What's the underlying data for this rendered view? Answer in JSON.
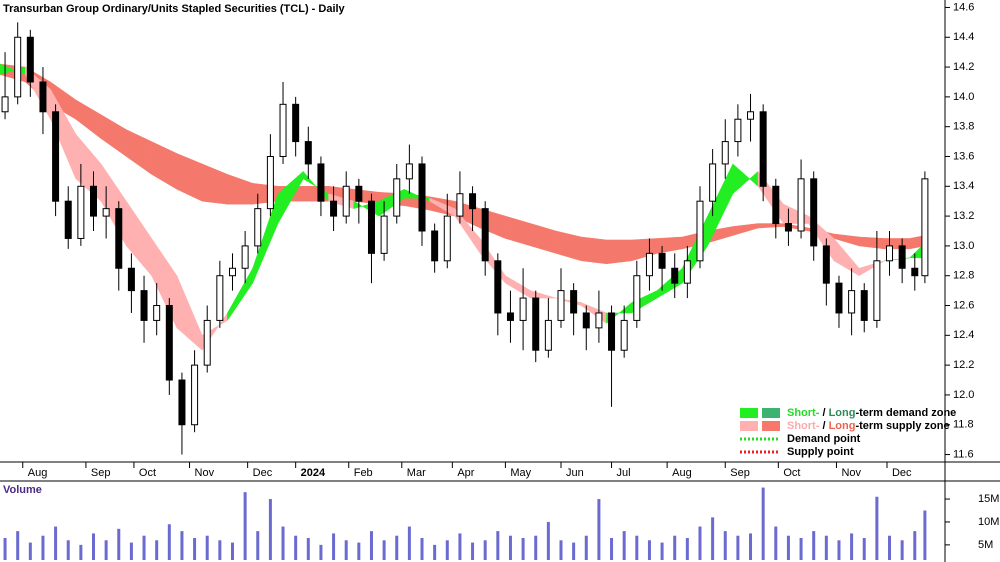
{
  "chart_data": [
    {
      "type": "candlestick",
      "title": "Transurban Group Ordinary/Units Stapled Securities (TCL) - Daily",
      "x": [
        2,
        7,
        12,
        17,
        22,
        27,
        32,
        37,
        42,
        47,
        52,
        57,
        62,
        67,
        72,
        77,
        82,
        87,
        92,
        97,
        102,
        107,
        112,
        117,
        122,
        127,
        132,
        137,
        142,
        147,
        152,
        157,
        162,
        167,
        172,
        177,
        182,
        187,
        192,
        197,
        202,
        207,
        212,
        217,
        222,
        227,
        232,
        237,
        242,
        247,
        252,
        257,
        262,
        267,
        272,
        277,
        282,
        287,
        292,
        297,
        302,
        307,
        312,
        317,
        322,
        327,
        332,
        337,
        342,
        347,
        352,
        357,
        362,
        366
      ],
      "open": [
        13.9,
        14.0,
        14.4,
        14.1,
        13.9,
        13.3,
        13.05,
        13.4,
        13.2,
        13.25,
        12.85,
        12.7,
        12.5,
        12.6,
        12.1,
        11.8,
        12.2,
        12.5,
        12.8,
        12.85,
        13.0,
        13.25,
        13.6,
        13.95,
        13.7,
        13.55,
        13.3,
        13.2,
        13.4,
        13.3,
        12.95,
        13.2,
        13.45,
        13.55,
        13.1,
        12.9,
        13.2,
        13.35,
        13.25,
        12.9,
        12.55,
        12.5,
        12.65,
        12.3,
        12.5,
        12.7,
        12.55,
        12.45,
        12.55,
        12.3,
        12.5,
        12.8,
        12.95,
        12.85,
        12.75,
        12.9,
        13.3,
        13.55,
        13.7,
        13.85,
        13.9,
        13.4,
        13.15,
        13.1,
        13.45,
        13.0,
        12.75,
        12.55,
        12.7,
        12.5,
        12.9,
        13.0,
        12.85,
        12.8
      ],
      "high": [
        14.3,
        14.5,
        14.45,
        14.2,
        13.95,
        13.4,
        13.55,
        13.5,
        13.4,
        13.3,
        12.95,
        12.8,
        12.75,
        12.65,
        12.15,
        12.3,
        12.6,
        12.9,
        12.95,
        13.1,
        13.35,
        13.75,
        14.1,
        14.0,
        13.8,
        13.6,
        13.4,
        13.5,
        13.45,
        13.35,
        13.3,
        13.55,
        13.68,
        13.6,
        13.15,
        13.35,
        13.5,
        13.4,
        13.3,
        12.95,
        12.7,
        12.85,
        12.7,
        12.65,
        12.85,
        12.75,
        12.6,
        12.7,
        12.6,
        12.6,
        12.9,
        13.05,
        13.0,
        12.95,
        13.0,
        13.4,
        13.65,
        13.85,
        13.95,
        14.02,
        13.95,
        13.45,
        13.25,
        13.58,
        13.5,
        13.05,
        12.8,
        12.85,
        12.75,
        13.1,
        13.1,
        13.05,
        12.95,
        13.5
      ],
      "low": [
        13.85,
        13.95,
        14.0,
        13.75,
        13.2,
        12.98,
        13.0,
        13.1,
        13.05,
        12.7,
        12.55,
        12.35,
        12.4,
        12.0,
        11.6,
        11.75,
        12.15,
        12.45,
        12.7,
        12.75,
        12.95,
        13.2,
        13.55,
        13.6,
        13.45,
        13.2,
        13.1,
        13.15,
        13.15,
        12.75,
        12.9,
        13.15,
        13.35,
        13.0,
        12.82,
        12.85,
        13.15,
        13.1,
        12.8,
        12.4,
        12.35,
        12.3,
        12.22,
        12.25,
        12.45,
        12.4,
        12.3,
        12.35,
        11.92,
        12.25,
        12.45,
        12.7,
        12.7,
        12.65,
        12.65,
        12.85,
        13.2,
        13.45,
        13.6,
        13.7,
        13.3,
        13.05,
        13.0,
        13.05,
        12.9,
        12.6,
        12.45,
        12.4,
        12.42,
        12.45,
        12.8,
        12.75,
        12.7,
        12.75
      ],
      "close": [
        14.0,
        14.4,
        14.1,
        13.9,
        13.3,
        13.05,
        13.4,
        13.2,
        13.25,
        12.85,
        12.7,
        12.5,
        12.6,
        12.1,
        11.8,
        12.2,
        12.5,
        12.8,
        12.85,
        13.0,
        13.25,
        13.6,
        13.95,
        13.7,
        13.55,
        13.3,
        13.2,
        13.4,
        13.3,
        12.95,
        13.2,
        13.45,
        13.55,
        13.1,
        12.9,
        13.2,
        13.35,
        13.25,
        12.9,
        12.55,
        12.5,
        12.65,
        12.3,
        12.5,
        12.7,
        12.55,
        12.45,
        12.55,
        12.3,
        12.5,
        12.8,
        12.95,
        12.85,
        12.75,
        12.9,
        13.3,
        13.55,
        13.7,
        13.85,
        13.9,
        13.4,
        13.15,
        13.1,
        13.45,
        13.0,
        12.75,
        12.55,
        12.7,
        12.5,
        12.9,
        13.0,
        12.85,
        12.8,
        13.45
      ],
      "up_color": "#ffffff",
      "down_color": "#000000",
      "xlim": [
        0,
        370
      ],
      "ylim": [
        11.55,
        14.65
      ],
      "yticks": [
        14.6,
        14.4,
        14.2,
        {
          "value": 14,
          "label": "14.0"
        },
        13.8,
        13.6,
        13.4,
        13.2,
        {
          "value": 13,
          "label": "13.0"
        },
        12.8,
        12.6,
        12.4,
        12.2,
        {
          "value": 12,
          "label": "12.0"
        },
        11.8,
        11.6
      ],
      "xticks": [
        {
          "value": 9,
          "label": "Aug"
        },
        {
          "value": 34,
          "label": "Sep"
        },
        {
          "value": 53,
          "label": "Oct"
        },
        {
          "value": 75,
          "label": "Nov"
        },
        {
          "value": 98,
          "label": "Dec"
        },
        {
          "value": 117,
          "label": "2024"
        },
        {
          "value": 138,
          "label": "Feb"
        },
        {
          "value": 159,
          "label": "Mar"
        },
        {
          "value": 179,
          "label": "Apr"
        },
        {
          "value": 200,
          "label": "May"
        },
        {
          "value": 222,
          "label": "Jun"
        },
        {
          "value": 242,
          "label": "Jul"
        },
        {
          "value": 264,
          "label": "Aug"
        },
        {
          "value": 287,
          "label": "Sep"
        },
        {
          "value": 308,
          "label": "Oct"
        },
        {
          "value": 331,
          "label": "Nov"
        },
        {
          "value": 351,
          "label": "Dec"
        }
      ],
      "bands": [
        {
          "x": [
            0,
            10,
            20,
            30,
            40,
            50,
            60,
            70,
            80,
            90,
            100,
            110,
            120,
            130,
            140,
            150,
            160,
            170,
            180,
            190,
            200,
            210,
            220,
            230,
            240,
            250,
            260,
            270,
            280,
            290,
            300,
            310,
            320,
            330,
            340,
            350,
            360,
            366
          ],
          "fast": [
            14.15,
            14.1,
            13.95,
            13.85,
            13.72,
            13.6,
            13.48,
            13.38,
            13.3,
            13.28,
            13.28,
            13.3,
            13.3,
            13.3,
            13.3,
            13.28,
            13.27,
            13.24,
            13.2,
            13.12,
            13.05,
            13.0,
            12.95,
            12.9,
            12.88,
            12.9,
            12.95,
            12.98,
            13.02,
            13.07,
            13.12,
            13.13,
            13.1,
            13.05,
            13.0,
            12.98,
            12.98,
            13.0
          ],
          "slow": [
            14.22,
            14.2,
            14.1,
            13.98,
            13.88,
            13.78,
            13.7,
            13.62,
            13.55,
            13.48,
            13.42,
            13.4,
            13.4,
            13.4,
            13.38,
            13.36,
            13.35,
            13.33,
            13.3,
            13.25,
            13.2,
            13.15,
            13.1,
            13.06,
            13.04,
            13.04,
            13.05,
            13.06,
            13.1,
            13.13,
            13.15,
            13.15,
            13.12,
            13.08,
            13.06,
            13.05,
            13.05,
            13.07
          ],
          "demand_color": "#3cb371",
          "supply_color": "#f4796c"
        },
        {
          "x": [
            0,
            10,
            20,
            30,
            40,
            50,
            60,
            70,
            80,
            90,
            100,
            110,
            120,
            130,
            140,
            150,
            160,
            170,
            180,
            190,
            200,
            210,
            220,
            230,
            240,
            250,
            260,
            270,
            280,
            290,
            300,
            310,
            320,
            330,
            340,
            350,
            360,
            366
          ],
          "fast": [
            14.22,
            14.15,
            13.85,
            13.45,
            13.3,
            13.0,
            12.8,
            12.45,
            12.3,
            12.55,
            12.85,
            13.35,
            13.5,
            13.3,
            13.25,
            13.3,
            13.38,
            13.3,
            13.2,
            12.95,
            12.75,
            12.65,
            12.65,
            12.6,
            12.48,
            12.62,
            12.7,
            12.85,
            13.2,
            13.55,
            13.4,
            13.15,
            13.15,
            12.9,
            12.8,
            12.9,
            12.92,
            13.02
          ],
          "slow": [
            14.15,
            14.2,
            14.05,
            13.75,
            13.55,
            13.3,
            13.05,
            12.8,
            12.4,
            12.5,
            12.75,
            13.15,
            13.45,
            13.35,
            13.3,
            13.2,
            13.32,
            13.32,
            13.25,
            13.05,
            12.8,
            12.7,
            12.65,
            12.62,
            12.55,
            12.55,
            12.65,
            12.75,
            13.0,
            13.35,
            13.5,
            13.28,
            13.2,
            13.05,
            12.85,
            12.9,
            12.92,
            12.92
          ],
          "demand_color": "#22ee22",
          "supply_color": "#ffb0b0"
        }
      ],
      "legend": [
        {
          "swatches": [
            "#22ee22",
            "#3cb371"
          ],
          "text": [
            {
              "text": "Short-",
              "color": "#22dd22"
            },
            {
              "text": " / ",
              "color": "#000000"
            },
            {
              "text": "Long",
              "color": "#2e8b57"
            },
            {
              "text": "-term demand zone",
              "color": "#000000"
            }
          ]
        },
        {
          "swatches": [
            "#ffb0b0",
            "#f4796c"
          ],
          "text": [
            {
              "text": "Short-",
              "color": "#ffaaaa"
            },
            {
              "text": " / ",
              "color": "#000000"
            },
            {
              "text": "Long",
              "color": "#f06050"
            },
            {
              "text": "-term supply zone",
              "color": "#000000"
            }
          ]
        },
        {
          "line_color": "#22dd22",
          "text": [
            {
              "text": "Demand point",
              "color": "#000000"
            }
          ]
        },
        {
          "line_color": "#ee2222",
          "text": [
            {
              "text": "Supply point",
              "color": "#000000"
            }
          ]
        }
      ]
    },
    {
      "type": "volume",
      "title": "Volume",
      "x": [
        2,
        7,
        12,
        17,
        22,
        27,
        32,
        37,
        42,
        47,
        52,
        57,
        62,
        67,
        72,
        77,
        82,
        87,
        92,
        97,
        102,
        107,
        112,
        117,
        122,
        127,
        132,
        137,
        142,
        147,
        152,
        157,
        162,
        167,
        172,
        177,
        182,
        187,
        192,
        197,
        202,
        207,
        212,
        217,
        222,
        227,
        232,
        237,
        242,
        247,
        252,
        257,
        262,
        267,
        272,
        277,
        282,
        287,
        292,
        297,
        302,
        307,
        312,
        317,
        322,
        327,
        332,
        337,
        342,
        347,
        352,
        357,
        362,
        366
      ],
      "values": [
        6500000,
        8000000,
        5500000,
        7000000,
        9000000,
        6000000,
        5000000,
        7500000,
        6000000,
        8500000,
        5500000,
        7000000,
        6000000,
        9500000,
        8000000,
        6500000,
        7000000,
        6000000,
        5500000,
        16500000,
        8000000,
        15000000,
        9000000,
        7000000,
        6500000,
        5000000,
        7500000,
        6000000,
        5500000,
        8000000,
        6000000,
        7000000,
        9000000,
        6500000,
        5000000,
        6000000,
        7500000,
        5500000,
        6000000,
        8000000,
        7000000,
        6500000,
        7000000,
        10000000,
        6000000,
        5500000,
        7000000,
        15000000,
        6500000,
        8000000,
        7000000,
        6000000,
        5500000,
        7000000,
        6500000,
        9000000,
        11000000,
        8000000,
        7000000,
        7500000,
        17500000,
        9000000,
        7000000,
        6500000,
        8000000,
        7000000,
        6000000,
        7500000,
        6500000,
        15500000,
        7000000,
        6000000,
        8000000,
        12500000
      ],
      "color": "#6a6ad0",
      "xlim": [
        0,
        370
      ],
      "ylim": [
        1700000,
        18500000
      ],
      "yticks": [
        {
          "value": 15000000,
          "label": "15M"
        },
        {
          "value": 10000000,
          "label": "10M"
        },
        {
          "value": 5000000,
          "label": "5M"
        }
      ]
    }
  ]
}
